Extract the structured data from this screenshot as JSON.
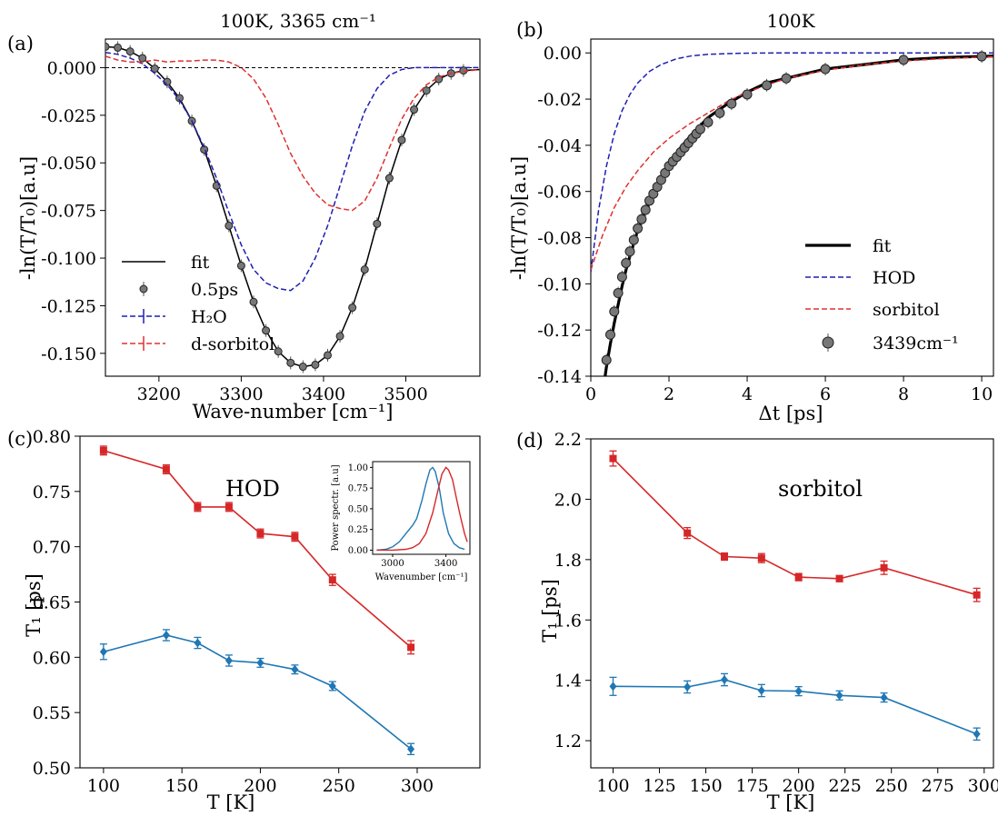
{
  "chart_data": [
    {
      "panel": "(a)",
      "type": "line",
      "title": "100K, 3365 cm⁻¹",
      "xlabel": "Wave-number [cm⁻¹]",
      "ylabel": "-ln(T/T₀)[a.u]",
      "xlim": [
        3135,
        3590
      ],
      "ylim": [
        -0.162,
        0.015
      ],
      "xticks": [
        "3200",
        "3300",
        "3400",
        "3500"
      ],
      "yticks": [
        "0.000",
        "-0.025",
        "-0.050",
        "-0.075",
        "-0.100",
        "-0.125",
        "-0.150"
      ],
      "legend_position": "lower-left",
      "zero_line": true,
      "series": [
        {
          "name": "fit",
          "style": "solid",
          "color": "#000000",
          "x": [
            3135,
            3150,
            3165,
            3180,
            3195,
            3210,
            3225,
            3240,
            3255,
            3270,
            3285,
            3300,
            3315,
            3330,
            3345,
            3360,
            3375,
            3390,
            3405,
            3420,
            3435,
            3450,
            3465,
            3480,
            3495,
            3510,
            3525,
            3540,
            3555,
            3570,
            3590
          ],
          "y": [
            0.011,
            0.0105,
            0.0085,
            0.005,
            -0.0005,
            -0.0075,
            -0.016,
            -0.028,
            -0.043,
            -0.062,
            -0.083,
            -0.104,
            -0.123,
            -0.138,
            -0.149,
            -0.155,
            -0.157,
            -0.156,
            -0.151,
            -0.141,
            -0.126,
            -0.106,
            -0.082,
            -0.058,
            -0.038,
            -0.022,
            -0.012,
            -0.006,
            -0.003,
            -0.0015,
            -0.001
          ]
        },
        {
          "name": "0.5ps",
          "style": "markers",
          "color": "#777777",
          "x": [
            3135,
            3150,
            3165,
            3180,
            3195,
            3210,
            3225,
            3240,
            3255,
            3270,
            3285,
            3300,
            3315,
            3330,
            3345,
            3360,
            3375,
            3390,
            3405,
            3420,
            3435,
            3450,
            3465,
            3480,
            3495,
            3510,
            3525,
            3540,
            3555,
            3570
          ],
          "y": [
            0.011,
            0.0105,
            0.0085,
            0.005,
            -0.0005,
            -0.0075,
            -0.016,
            -0.028,
            -0.043,
            -0.062,
            -0.083,
            -0.104,
            -0.123,
            -0.138,
            -0.149,
            -0.155,
            -0.157,
            -0.156,
            -0.151,
            -0.141,
            -0.126,
            -0.106,
            -0.082,
            -0.058,
            -0.038,
            -0.022,
            -0.012,
            -0.006,
            -0.003,
            -0.0015
          ]
        },
        {
          "name": "H₂O",
          "style": "dashed",
          "color": "#1f1fb4",
          "x": [
            3135,
            3150,
            3165,
            3180,
            3195,
            3210,
            3225,
            3240,
            3255,
            3270,
            3285,
            3300,
            3315,
            3330,
            3345,
            3360,
            3375,
            3390,
            3405,
            3420,
            3435,
            3450,
            3465,
            3480,
            3495,
            3510,
            3525,
            3540,
            3555,
            3590
          ],
          "y": [
            0.008,
            0.007,
            0.005,
            0.002,
            -0.003,
            -0.009,
            -0.017,
            -0.028,
            -0.042,
            -0.058,
            -0.076,
            -0.093,
            -0.106,
            -0.113,
            -0.116,
            -0.117,
            -0.112,
            -0.1,
            -0.083,
            -0.062,
            -0.041,
            -0.023,
            -0.011,
            -0.004,
            -0.001,
            0.0,
            0.0,
            0.0,
            0.0,
            0.0
          ]
        },
        {
          "name": "d-sorbitol",
          "style": "dashed",
          "color": "#e03030",
          "x": [
            3135,
            3150,
            3165,
            3180,
            3195,
            3210,
            3225,
            3240,
            3255,
            3270,
            3285,
            3300,
            3315,
            3330,
            3345,
            3360,
            3375,
            3390,
            3405,
            3420,
            3435,
            3450,
            3465,
            3480,
            3495,
            3510,
            3525,
            3540,
            3555,
            3570,
            3590
          ],
          "y": [
            0.006,
            0.004,
            0.003,
            0.003,
            0.004,
            0.003,
            0.0035,
            0.0035,
            0.004,
            0.004,
            0.003,
            0.0,
            -0.006,
            -0.016,
            -0.03,
            -0.045,
            -0.057,
            -0.066,
            -0.072,
            -0.074,
            -0.075,
            -0.07,
            -0.058,
            -0.042,
            -0.027,
            -0.016,
            -0.009,
            -0.005,
            -0.003,
            -0.002,
            -0.001
          ]
        }
      ]
    },
    {
      "panel": "(b)",
      "type": "line",
      "title": "100K",
      "xlabel": "Δt [ps]",
      "ylabel": "-ln(T/T₀)[a.u]",
      "xlim": [
        0,
        10.3
      ],
      "ylim": [
        -0.14,
        0.006
      ],
      "xticks": [
        "0",
        "2",
        "4",
        "6",
        "8",
        "10"
      ],
      "yticks": [
        "0.00",
        "-0.02",
        "-0.04",
        "-0.06",
        "-0.08",
        "-0.10",
        "-0.12",
        "-0.14"
      ],
      "legend_position": "lower-right",
      "series": [
        {
          "name": "fit",
          "style": "solid-thick",
          "color": "#000000",
          "x": [
            0.3,
            0.4,
            0.5,
            0.6,
            0.7,
            0.8,
            0.9,
            1.0,
            1.2,
            1.4,
            1.6,
            1.8,
            2.0,
            2.3,
            2.6,
            3.0,
            3.5,
            4.0,
            4.5,
            5.0,
            5.5,
            6.0,
            7.0,
            8.0,
            9.0,
            10.0,
            10.3
          ],
          "y": [
            -0.148,
            -0.136,
            -0.126,
            -0.117,
            -0.109,
            -0.101,
            -0.094,
            -0.088,
            -0.077,
            -0.068,
            -0.061,
            -0.054,
            -0.048,
            -0.041,
            -0.035,
            -0.028,
            -0.022,
            -0.017,
            -0.013,
            -0.011,
            -0.009,
            -0.007,
            -0.005,
            -0.003,
            -0.002,
            -0.0015,
            -0.0013
          ]
        },
        {
          "name": "HOD",
          "style": "dashed",
          "color": "#1f1fb4",
          "x": [
            0,
            0.2,
            0.4,
            0.6,
            0.8,
            1.0,
            1.2,
            1.5,
            1.8,
            2.2,
            2.6,
            3.0,
            3.5,
            4.0,
            5.0,
            6.0,
            8.0,
            10.3
          ],
          "y": [
            -0.095,
            -0.068,
            -0.049,
            -0.035,
            -0.025,
            -0.018,
            -0.013,
            -0.008,
            -0.005,
            -0.0025,
            -0.0012,
            -0.0006,
            -0.0003,
            -0.0001,
            0.0,
            0.0,
            0.0,
            0.0
          ]
        },
        {
          "name": "sorbitol",
          "style": "dashed",
          "color": "#e03030",
          "x": [
            0,
            0.3,
            0.6,
            0.9,
            1.2,
            1.6,
            2.0,
            2.5,
            3.0,
            3.5,
            4.0,
            4.5,
            5.0,
            6.0,
            7.0,
            8.0,
            9.0,
            10.0,
            10.3
          ],
          "y": [
            -0.094,
            -0.079,
            -0.067,
            -0.058,
            -0.051,
            -0.043,
            -0.037,
            -0.031,
            -0.026,
            -0.021,
            -0.017,
            -0.014,
            -0.011,
            -0.0075,
            -0.005,
            -0.0035,
            -0.0025,
            -0.0018,
            -0.0016
          ]
        },
        {
          "name": "3439cm⁻¹",
          "style": "markers",
          "color": "#777777",
          "x": [
            0.4,
            0.5,
            0.6,
            0.7,
            0.8,
            0.9,
            1.0,
            1.1,
            1.2,
            1.3,
            1.4,
            1.5,
            1.6,
            1.7,
            1.8,
            1.9,
            2.0,
            2.1,
            2.2,
            2.3,
            2.4,
            2.5,
            2.6,
            2.7,
            2.8,
            3.0,
            3.3,
            3.6,
            4.0,
            4.5,
            5.0,
            6.0,
            8.0,
            10.0
          ],
          "y": [
            -0.133,
            -0.122,
            -0.112,
            -0.104,
            -0.097,
            -0.091,
            -0.086,
            -0.081,
            -0.076,
            -0.072,
            -0.068,
            -0.064,
            -0.061,
            -0.058,
            -0.055,
            -0.052,
            -0.049,
            -0.047,
            -0.045,
            -0.043,
            -0.041,
            -0.039,
            -0.037,
            -0.035,
            -0.033,
            -0.03,
            -0.026,
            -0.022,
            -0.018,
            -0.014,
            -0.011,
            -0.007,
            -0.003,
            -0.0015
          ]
        }
      ]
    },
    {
      "panel": "(c)",
      "type": "line",
      "annotation": "HOD",
      "xlabel": "T [K]",
      "ylabel": "T₁ [ps]",
      "xlim": [
        85,
        340
      ],
      "ylim": [
        0.5,
        0.8
      ],
      "xticks": [
        "100",
        "150",
        "200",
        "250",
        "300"
      ],
      "yticks": [
        "0.50",
        "0.55",
        "0.60",
        "0.65",
        "0.70",
        "0.75",
        "0.80"
      ],
      "series": [
        {
          "color": "#d62728",
          "marker": "square",
          "x": [
            100,
            140,
            160,
            180,
            200,
            222,
            246,
            296
          ],
          "y": [
            0.787,
            0.77,
            0.736,
            0.736,
            0.712,
            0.709,
            0.67,
            0.609
          ],
          "err": [
            0.004,
            0.004,
            0.004,
            0.004,
            0.004,
            0.004,
            0.005,
            0.006
          ]
        },
        {
          "color": "#1f77b4",
          "marker": "diamond",
          "x": [
            100,
            140,
            160,
            180,
            200,
            222,
            246,
            296
          ],
          "y": [
            0.605,
            0.62,
            0.613,
            0.597,
            0.595,
            0.589,
            0.574,
            0.517
          ],
          "err": [
            0.007,
            0.005,
            0.005,
            0.005,
            0.004,
            0.004,
            0.004,
            0.005
          ]
        }
      ],
      "inset": {
        "type": "line",
        "xlabel": "Wavenumber [cm⁻¹]",
        "ylabel": "Power spectr. [a.u]",
        "xlim": [
          2850,
          3580
        ],
        "ylim": [
          -0.05,
          1.07
        ],
        "xticks": [
          "3000",
          "3400"
        ],
        "yticks": [
          "0.00",
          "0.25",
          "0.50",
          "0.75",
          "1.00"
        ],
        "series": [
          {
            "color": "#1f77b4",
            "x": [
              2880,
              2950,
              3000,
              3050,
              3100,
              3150,
              3180,
              3220,
              3250,
              3280,
              3300,
              3320,
              3350,
              3380,
              3420,
              3460,
              3500,
              3540
            ],
            "y": [
              0.0,
              0.01,
              0.04,
              0.1,
              0.2,
              0.3,
              0.38,
              0.6,
              0.8,
              0.97,
              1.0,
              0.95,
              0.75,
              0.45,
              0.2,
              0.08,
              0.03,
              0.01
            ]
          },
          {
            "color": "#d62728",
            "x": [
              2880,
              3000,
              3100,
              3150,
              3200,
              3250,
              3300,
              3340,
              3370,
              3400,
              3420,
              3450,
              3480,
              3510,
              3540,
              3560
            ],
            "y": [
              0.0,
              0.0,
              0.01,
              0.03,
              0.08,
              0.2,
              0.45,
              0.72,
              0.92,
              1.0,
              0.97,
              0.85,
              0.62,
              0.4,
              0.2,
              0.1
            ]
          }
        ]
      }
    },
    {
      "panel": "(d)",
      "type": "line",
      "annotation": "sorbitol",
      "xlabel": "T [K]",
      "ylabel": "T₁ [ps]",
      "xlim": [
        88,
        305
      ],
      "ylim": [
        1.11,
        2.2
      ],
      "xticks": [
        "100",
        "125",
        "150",
        "175",
        "200",
        "225",
        "250",
        "275",
        "300"
      ],
      "yticks": [
        "1.2",
        "1.4",
        "1.6",
        "1.8",
        "2.0",
        "2.2"
      ],
      "series": [
        {
          "color": "#d62728",
          "marker": "square",
          "x": [
            100,
            140,
            160,
            180,
            200,
            222,
            246,
            296
          ],
          "y": [
            2.135,
            1.888,
            1.81,
            1.805,
            1.742,
            1.737,
            1.773,
            1.683
          ],
          "err": [
            0.025,
            0.018,
            0.012,
            0.015,
            0.012,
            0.01,
            0.022,
            0.022
          ]
        },
        {
          "color": "#1f77b4",
          "marker": "diamond",
          "x": [
            100,
            140,
            160,
            180,
            200,
            222,
            246,
            296
          ],
          "y": [
            1.38,
            1.378,
            1.402,
            1.366,
            1.364,
            1.35,
            1.343,
            1.222
          ],
          "err": [
            0.03,
            0.02,
            0.02,
            0.02,
            0.015,
            0.015,
            0.015,
            0.02
          ]
        }
      ]
    }
  ]
}
